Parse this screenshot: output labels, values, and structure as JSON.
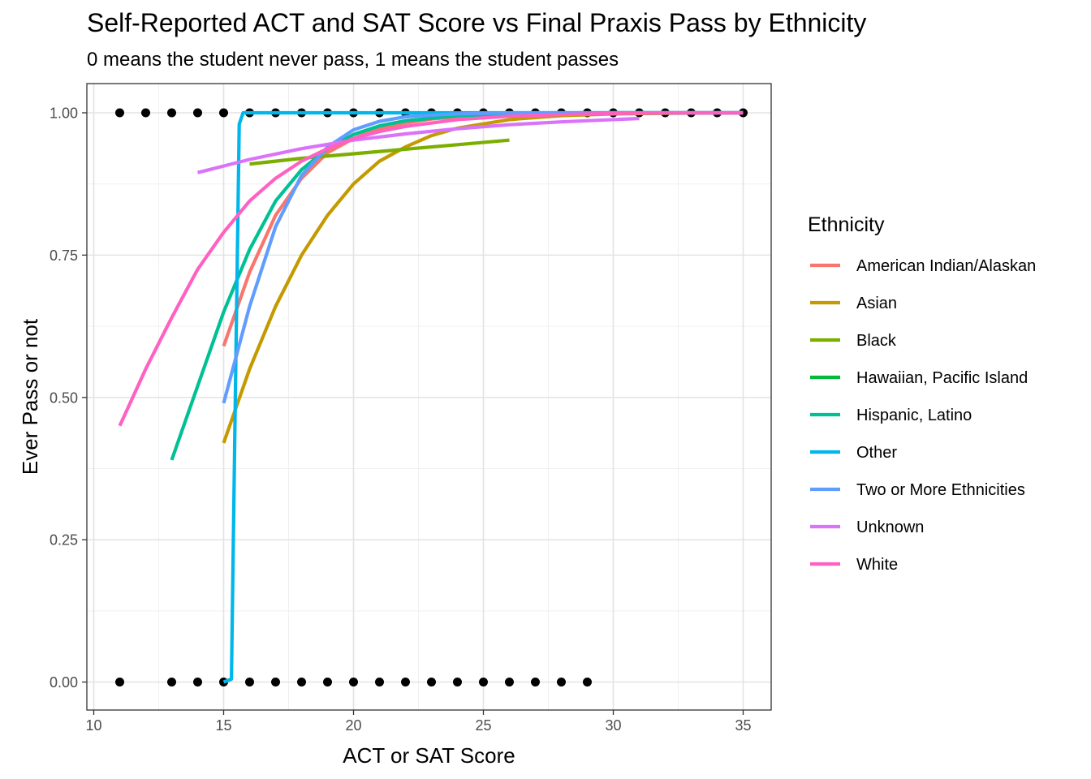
{
  "chart_data": {
    "type": "scatter",
    "title": "Self-Reported ACT and SAT Score vs Final Praxis Pass by Ethnicity",
    "subtitle": "0 means the student never pass, 1 means the student passes",
    "xlabel": "ACT or SAT Score",
    "ylabel": "Ever Pass or not",
    "xlim": [
      10,
      36
    ],
    "ylim": [
      -0.05,
      1.05
    ],
    "x_ticks": [
      "10",
      "15",
      "20",
      "25",
      "30",
      "35"
    ],
    "y_ticks": [
      "0.00",
      "0.25",
      "0.50",
      "0.75",
      "1.00"
    ],
    "x_tick_values": [
      10,
      15,
      20,
      25,
      30,
      35
    ],
    "y_tick_values": [
      0,
      0.25,
      0.5,
      0.75,
      1
    ],
    "grid": true,
    "legend_title": "Ethnicity",
    "legend_position": "right",
    "points_pass": [
      11,
      12,
      13,
      14,
      15,
      16,
      17,
      18,
      19,
      20,
      21,
      22,
      23,
      24,
      25,
      26,
      27,
      28,
      29,
      30,
      31,
      32,
      33,
      34,
      35
    ],
    "points_fail": [
      11,
      13,
      14,
      15,
      16,
      17,
      18,
      19,
      20,
      21,
      22,
      23,
      24,
      25,
      26,
      27,
      28,
      29
    ],
    "point_color": "#000000",
    "series": [
      {
        "name": "American Indian/Alaskan",
        "color": "#F8766D",
        "x": [
          15,
          16,
          17,
          18,
          19,
          20,
          21,
          22,
          23,
          24,
          26,
          28,
          30,
          32,
          35
        ],
        "y": [
          0.59,
          0.72,
          0.82,
          0.885,
          0.93,
          0.955,
          0.972,
          0.982,
          0.989,
          0.993,
          0.997,
          0.999,
          1.0,
          1.0,
          1.0
        ]
      },
      {
        "name": "Asian",
        "color": "#C49A00",
        "x": [
          15,
          16,
          17,
          18,
          19,
          20,
          21,
          22,
          23,
          24,
          26,
          28,
          30,
          32,
          35
        ],
        "y": [
          0.42,
          0.55,
          0.66,
          0.75,
          0.82,
          0.875,
          0.915,
          0.94,
          0.96,
          0.973,
          0.988,
          0.995,
          0.998,
          0.999,
          1.0
        ]
      },
      {
        "name": "Black",
        "color": "#7CAE00",
        "x": [
          16,
          18,
          20,
          22,
          24,
          26
        ],
        "y": [
          0.91,
          0.92,
          0.928,
          0.936,
          0.944,
          0.952
        ]
      },
      {
        "name": "Hawaiian, Pacific Island",
        "color": "#00BA38",
        "x": [],
        "y": []
      },
      {
        "name": "Hispanic, Latino",
        "color": "#00C094",
        "x": [
          13,
          14,
          15,
          16,
          17,
          18,
          19,
          20,
          21,
          22,
          24,
          26,
          28,
          30,
          32,
          35
        ],
        "y": [
          0.39,
          0.52,
          0.65,
          0.76,
          0.845,
          0.9,
          0.937,
          0.962,
          0.977,
          0.986,
          0.995,
          0.998,
          0.999,
          1.0,
          1.0,
          1.0
        ]
      },
      {
        "name": "Other",
        "color": "#00B6EB",
        "x": [
          15,
          15.3,
          15.45,
          15.6,
          15.75,
          20,
          25,
          30,
          35
        ],
        "y": [
          0.0,
          0.005,
          0.5,
          0.98,
          1.0,
          1.0,
          1.0,
          1.0,
          1.0
        ]
      },
      {
        "name": "Two or More Ethnicities",
        "color": "#619CFF",
        "x": [
          15,
          16,
          17,
          18,
          19,
          20,
          21,
          22,
          23,
          24,
          26,
          28,
          30,
          32,
          35
        ],
        "y": [
          0.49,
          0.66,
          0.8,
          0.89,
          0.94,
          0.97,
          0.985,
          0.993,
          0.996,
          0.998,
          1.0,
          1.0,
          1.0,
          1.0,
          1.0
        ]
      },
      {
        "name": "Unknown",
        "color": "#DB72FB",
        "x": [
          14,
          16,
          18,
          20,
          22,
          24,
          26,
          28,
          31
        ],
        "y": [
          0.895,
          0.918,
          0.937,
          0.952,
          0.963,
          0.972,
          0.979,
          0.984,
          0.99
        ]
      },
      {
        "name": "White",
        "color": "#FF61C3",
        "x": [
          11,
          12,
          13,
          14,
          15,
          16,
          17,
          18,
          19,
          20,
          21,
          22,
          24,
          26,
          28,
          30,
          32,
          35
        ],
        "y": [
          0.45,
          0.55,
          0.64,
          0.725,
          0.79,
          0.845,
          0.885,
          0.915,
          0.937,
          0.955,
          0.967,
          0.976,
          0.988,
          0.994,
          0.997,
          0.999,
          1.0,
          1.0
        ]
      }
    ]
  }
}
